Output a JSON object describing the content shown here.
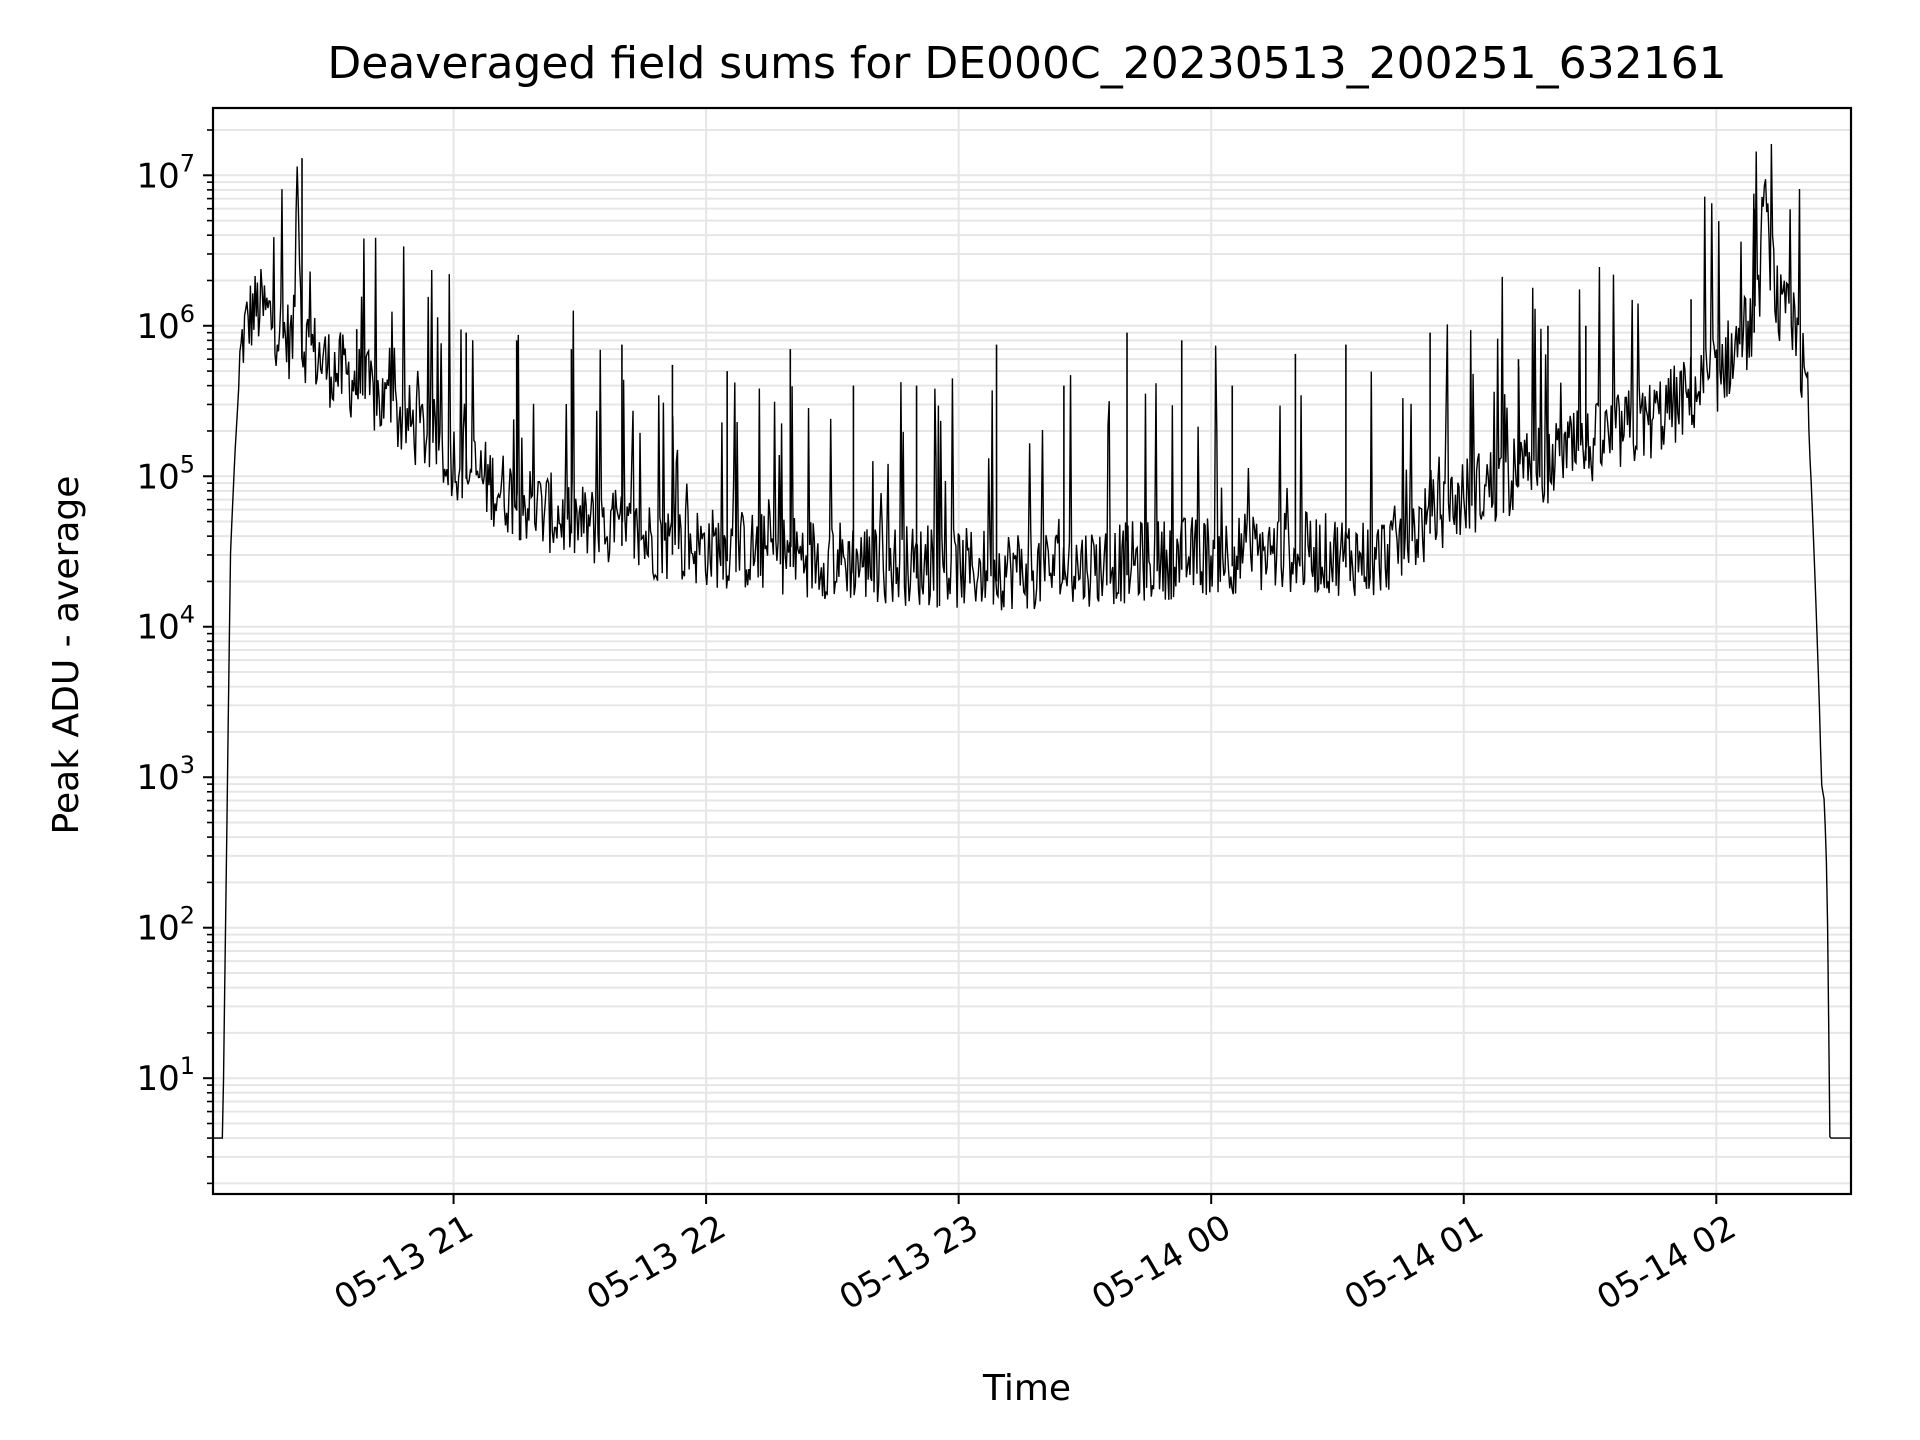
{
  "chart_data": {
    "type": "line",
    "title": "Deaveraged field sums for DE000C_20230513_200251_632161",
    "xlabel": "Time",
    "ylabel": "Peak ADU - average",
    "y_scale": "log",
    "ylim": [
      1.7,
      28000000
    ],
    "xlim": [
      "2023-05-13 20:02:51",
      "2023-05-14 02:32:00"
    ],
    "grid": true,
    "line_color": "#000000",
    "grid_color": "#e6e6e6",
    "x_ticks": [
      {
        "value": "2023-05-13 21:00",
        "label": "05-13 21"
      },
      {
        "value": "2023-05-13 22:00",
        "label": "05-13 22"
      },
      {
        "value": "2023-05-13 23:00",
        "label": "05-13 23"
      },
      {
        "value": "2023-05-14 00:00",
        "label": "05-14 00"
      },
      {
        "value": "2023-05-14 01:00",
        "label": "05-14 01"
      },
      {
        "value": "2023-05-14 02:00",
        "label": "05-14 02"
      }
    ],
    "y_ticks": [
      {
        "value": 10,
        "base": "10",
        "exp": "1"
      },
      {
        "value": 100,
        "base": "10",
        "exp": "2"
      },
      {
        "value": 1000,
        "base": "10",
        "exp": "3"
      },
      {
        "value": 10000,
        "base": "10",
        "exp": "4"
      },
      {
        "value": 100000,
        "base": "10",
        "exp": "5"
      },
      {
        "value": 1000000,
        "base": "10",
        "exp": "6"
      },
      {
        "value": 10000000,
        "base": "10",
        "exp": "7"
      }
    ],
    "series": [
      {
        "x": [
          "2023-05-13 20:02:51",
          "2023-05-13 20:05:10",
          "2023-05-13 20:06:10",
          "2023-05-13 20:07:00",
          "2023-05-13 20:08:00",
          "2023-05-13 20:09:00",
          "2023-05-13 20:10:00",
          "2023-05-13 20:12:00",
          "2023-05-13 20:14:00",
          "2023-05-13 20:17:00",
          "2023-05-13 20:20:00",
          "2023-05-13 20:22:00",
          "2023-05-13 20:23:00",
          "2023-05-13 20:24:00",
          "2023-05-13 20:25:00",
          "2023-05-13 20:26:00",
          "2023-05-13 20:27:00",
          "2023-05-13 20:30:00",
          "2023-05-13 20:35:00",
          "2023-05-13 20:40:00",
          "2023-05-13 20:45:00",
          "2023-05-13 20:50:00",
          "2023-05-13 20:55:00",
          "2023-05-13 21:00:00",
          "2023-05-13 21:10:00",
          "2023-05-13 21:20:00",
          "2023-05-13 21:30:00",
          "2023-05-13 21:45:00",
          "2023-05-13 22:00:00",
          "2023-05-13 22:20:00",
          "2023-05-13 22:40:00",
          "2023-05-13 23:00:00",
          "2023-05-13 23:20:00",
          "2023-05-13 23:40:00",
          "2023-05-14 00:00:00",
          "2023-05-14 00:20:00",
          "2023-05-14 00:40:00",
          "2023-05-14 01:00:00",
          "2023-05-14 01:15:00",
          "2023-05-14 01:30:00",
          "2023-05-14 01:45:00",
          "2023-05-14 01:55:00",
          "2023-05-14 02:00:00",
          "2023-05-14 02:05:00",
          "2023-05-14 02:09:00",
          "2023-05-14 02:10:00",
          "2023-05-14 02:11:00",
          "2023-05-14 02:15:00",
          "2023-05-14 02:18:00",
          "2023-05-14 02:20:00",
          "2023-05-14 02:21:30",
          "2023-05-14 02:22:30",
          "2023-05-14 02:23:30",
          "2023-05-14 02:24:30",
          "2023-05-14 02:25:00",
          "2023-05-14 02:25:40",
          "2023-05-14 02:26:20",
          "2023-05-14 02:27:00",
          "2023-05-14 02:27:30",
          "2023-05-14 02:32:00"
        ],
        "y": [
          4,
          4,
          500,
          30000,
          130000,
          400000,
          700000,
          1000000,
          1100000,
          900000,
          700000,
          650000,
          13000000,
          600000,
          650000,
          600000,
          550000,
          450000,
          380000,
          300000,
          230000,
          180000,
          150000,
          110000,
          70000,
          50000,
          40000,
          32000,
          28000,
          25000,
          22000,
          20000,
          20000,
          22000,
          25000,
          26000,
          24000,
          60000,
          90000,
          130000,
          200000,
          300000,
          400000,
          600000,
          900000,
          950000,
          6000000,
          1000000,
          800000,
          500000,
          300000,
          100000,
          20000,
          3000,
          900,
          700,
          200,
          4,
          4,
          4
        ]
      }
    ],
    "spikes": [
      {
        "x": "2023-05-13 20:24:00",
        "y": 13000000
      },
      {
        "x": "2023-05-13 20:37:00",
        "y": 950000
      },
      {
        "x": "2023-05-13 21:03:00",
        "y": 900000
      },
      {
        "x": "2023-05-13 21:15:00",
        "y": 800000
      },
      {
        "x": "2023-05-13 21:28:00",
        "y": 700000
      },
      {
        "x": "2023-05-13 21:40:00",
        "y": 750000
      },
      {
        "x": "2023-05-13 21:52:00",
        "y": 550000
      },
      {
        "x": "2023-05-13 22:05:00",
        "y": 500000
      },
      {
        "x": "2023-05-13 22:20:00",
        "y": 700000
      },
      {
        "x": "2023-05-13 22:35:00",
        "y": 400000
      },
      {
        "x": "2023-05-13 22:50:00",
        "y": 400000
      },
      {
        "x": "2023-05-13 23:09:00",
        "y": 750000
      },
      {
        "x": "2023-05-13 23:25:00",
        "y": 400000
      },
      {
        "x": "2023-05-13 23:40:00",
        "y": 900000
      },
      {
        "x": "2023-05-13 23:53:00",
        "y": 800000
      },
      {
        "x": "2023-05-14 00:05:00",
        "y": 400000
      },
      {
        "x": "2023-05-14 00:20:00",
        "y": 650000
      },
      {
        "x": "2023-05-14 00:32:00",
        "y": 750000
      },
      {
        "x": "2023-05-14 00:52:00",
        "y": 900000
      },
      {
        "x": "2023-05-14 01:13:00",
        "y": 600000
      },
      {
        "x": "2023-05-14 01:20:00",
        "y": 1000000
      },
      {
        "x": "2023-05-14 01:29:00",
        "y": 1000000
      },
      {
        "x": "2023-05-14 01:54:00",
        "y": 1500000
      },
      {
        "x": "2023-05-14 02:09:00",
        "y": 6000000
      }
    ]
  }
}
